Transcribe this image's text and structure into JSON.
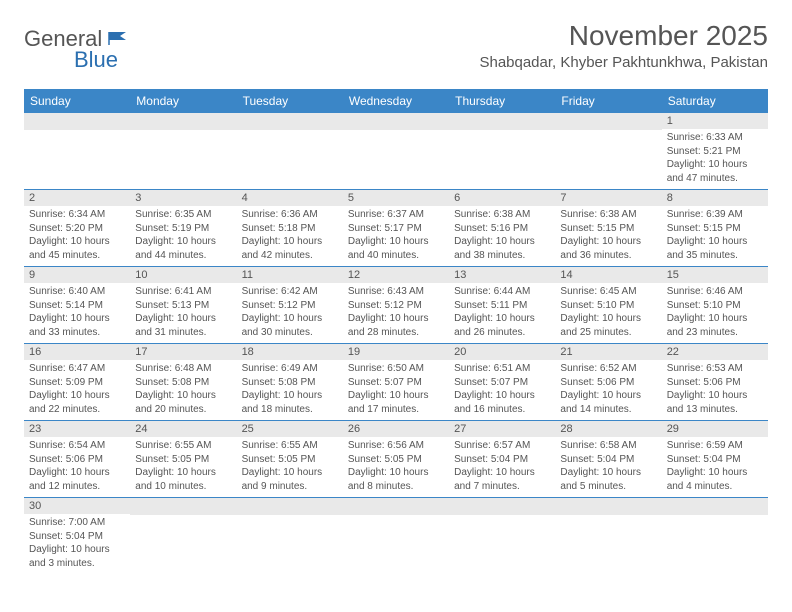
{
  "logo": {
    "general": "General",
    "blue": "Blue"
  },
  "title": "November 2025",
  "location": "Shabqadar, Khyber Pakhtunkhwa, Pakistan",
  "colors": {
    "header_bg": "#3b86c7",
    "header_text": "#ffffff",
    "daynum_bg": "#e9e9e9",
    "row_divider": "#3b86c7",
    "text": "#555555",
    "logo_gray": "#555555",
    "logo_blue": "#2b6fb0",
    "background": "#ffffff"
  },
  "weekdays": [
    "Sunday",
    "Monday",
    "Tuesday",
    "Wednesday",
    "Thursday",
    "Friday",
    "Saturday"
  ],
  "weeks": [
    [
      {
        "blank": true
      },
      {
        "blank": true
      },
      {
        "blank": true
      },
      {
        "blank": true
      },
      {
        "blank": true
      },
      {
        "blank": true
      },
      {
        "day": "1",
        "sunrise": "Sunrise: 6:33 AM",
        "sunset": "Sunset: 5:21 PM",
        "daylight1": "Daylight: 10 hours",
        "daylight2": "and 47 minutes."
      }
    ],
    [
      {
        "day": "2",
        "sunrise": "Sunrise: 6:34 AM",
        "sunset": "Sunset: 5:20 PM",
        "daylight1": "Daylight: 10 hours",
        "daylight2": "and 45 minutes."
      },
      {
        "day": "3",
        "sunrise": "Sunrise: 6:35 AM",
        "sunset": "Sunset: 5:19 PM",
        "daylight1": "Daylight: 10 hours",
        "daylight2": "and 44 minutes."
      },
      {
        "day": "4",
        "sunrise": "Sunrise: 6:36 AM",
        "sunset": "Sunset: 5:18 PM",
        "daylight1": "Daylight: 10 hours",
        "daylight2": "and 42 minutes."
      },
      {
        "day": "5",
        "sunrise": "Sunrise: 6:37 AM",
        "sunset": "Sunset: 5:17 PM",
        "daylight1": "Daylight: 10 hours",
        "daylight2": "and 40 minutes."
      },
      {
        "day": "6",
        "sunrise": "Sunrise: 6:38 AM",
        "sunset": "Sunset: 5:16 PM",
        "daylight1": "Daylight: 10 hours",
        "daylight2": "and 38 minutes."
      },
      {
        "day": "7",
        "sunrise": "Sunrise: 6:38 AM",
        "sunset": "Sunset: 5:15 PM",
        "daylight1": "Daylight: 10 hours",
        "daylight2": "and 36 minutes."
      },
      {
        "day": "8",
        "sunrise": "Sunrise: 6:39 AM",
        "sunset": "Sunset: 5:15 PM",
        "daylight1": "Daylight: 10 hours",
        "daylight2": "and 35 minutes."
      }
    ],
    [
      {
        "day": "9",
        "sunrise": "Sunrise: 6:40 AM",
        "sunset": "Sunset: 5:14 PM",
        "daylight1": "Daylight: 10 hours",
        "daylight2": "and 33 minutes."
      },
      {
        "day": "10",
        "sunrise": "Sunrise: 6:41 AM",
        "sunset": "Sunset: 5:13 PM",
        "daylight1": "Daylight: 10 hours",
        "daylight2": "and 31 minutes."
      },
      {
        "day": "11",
        "sunrise": "Sunrise: 6:42 AM",
        "sunset": "Sunset: 5:12 PM",
        "daylight1": "Daylight: 10 hours",
        "daylight2": "and 30 minutes."
      },
      {
        "day": "12",
        "sunrise": "Sunrise: 6:43 AM",
        "sunset": "Sunset: 5:12 PM",
        "daylight1": "Daylight: 10 hours",
        "daylight2": "and 28 minutes."
      },
      {
        "day": "13",
        "sunrise": "Sunrise: 6:44 AM",
        "sunset": "Sunset: 5:11 PM",
        "daylight1": "Daylight: 10 hours",
        "daylight2": "and 26 minutes."
      },
      {
        "day": "14",
        "sunrise": "Sunrise: 6:45 AM",
        "sunset": "Sunset: 5:10 PM",
        "daylight1": "Daylight: 10 hours",
        "daylight2": "and 25 minutes."
      },
      {
        "day": "15",
        "sunrise": "Sunrise: 6:46 AM",
        "sunset": "Sunset: 5:10 PM",
        "daylight1": "Daylight: 10 hours",
        "daylight2": "and 23 minutes."
      }
    ],
    [
      {
        "day": "16",
        "sunrise": "Sunrise: 6:47 AM",
        "sunset": "Sunset: 5:09 PM",
        "daylight1": "Daylight: 10 hours",
        "daylight2": "and 22 minutes."
      },
      {
        "day": "17",
        "sunrise": "Sunrise: 6:48 AM",
        "sunset": "Sunset: 5:08 PM",
        "daylight1": "Daylight: 10 hours",
        "daylight2": "and 20 minutes."
      },
      {
        "day": "18",
        "sunrise": "Sunrise: 6:49 AM",
        "sunset": "Sunset: 5:08 PM",
        "daylight1": "Daylight: 10 hours",
        "daylight2": "and 18 minutes."
      },
      {
        "day": "19",
        "sunrise": "Sunrise: 6:50 AM",
        "sunset": "Sunset: 5:07 PM",
        "daylight1": "Daylight: 10 hours",
        "daylight2": "and 17 minutes."
      },
      {
        "day": "20",
        "sunrise": "Sunrise: 6:51 AM",
        "sunset": "Sunset: 5:07 PM",
        "daylight1": "Daylight: 10 hours",
        "daylight2": "and 16 minutes."
      },
      {
        "day": "21",
        "sunrise": "Sunrise: 6:52 AM",
        "sunset": "Sunset: 5:06 PM",
        "daylight1": "Daylight: 10 hours",
        "daylight2": "and 14 minutes."
      },
      {
        "day": "22",
        "sunrise": "Sunrise: 6:53 AM",
        "sunset": "Sunset: 5:06 PM",
        "daylight1": "Daylight: 10 hours",
        "daylight2": "and 13 minutes."
      }
    ],
    [
      {
        "day": "23",
        "sunrise": "Sunrise: 6:54 AM",
        "sunset": "Sunset: 5:06 PM",
        "daylight1": "Daylight: 10 hours",
        "daylight2": "and 12 minutes."
      },
      {
        "day": "24",
        "sunrise": "Sunrise: 6:55 AM",
        "sunset": "Sunset: 5:05 PM",
        "daylight1": "Daylight: 10 hours",
        "daylight2": "and 10 minutes."
      },
      {
        "day": "25",
        "sunrise": "Sunrise: 6:55 AM",
        "sunset": "Sunset: 5:05 PM",
        "daylight1": "Daylight: 10 hours",
        "daylight2": "and 9 minutes."
      },
      {
        "day": "26",
        "sunrise": "Sunrise: 6:56 AM",
        "sunset": "Sunset: 5:05 PM",
        "daylight1": "Daylight: 10 hours",
        "daylight2": "and 8 minutes."
      },
      {
        "day": "27",
        "sunrise": "Sunrise: 6:57 AM",
        "sunset": "Sunset: 5:04 PM",
        "daylight1": "Daylight: 10 hours",
        "daylight2": "and 7 minutes."
      },
      {
        "day": "28",
        "sunrise": "Sunrise: 6:58 AM",
        "sunset": "Sunset: 5:04 PM",
        "daylight1": "Daylight: 10 hours",
        "daylight2": "and 5 minutes."
      },
      {
        "day": "29",
        "sunrise": "Sunrise: 6:59 AM",
        "sunset": "Sunset: 5:04 PM",
        "daylight1": "Daylight: 10 hours",
        "daylight2": "and 4 minutes."
      }
    ],
    [
      {
        "day": "30",
        "sunrise": "Sunrise: 7:00 AM",
        "sunset": "Sunset: 5:04 PM",
        "daylight1": "Daylight: 10 hours",
        "daylight2": "and 3 minutes."
      },
      {
        "blank": true
      },
      {
        "blank": true
      },
      {
        "blank": true
      },
      {
        "blank": true
      },
      {
        "blank": true
      },
      {
        "blank": true
      }
    ]
  ]
}
